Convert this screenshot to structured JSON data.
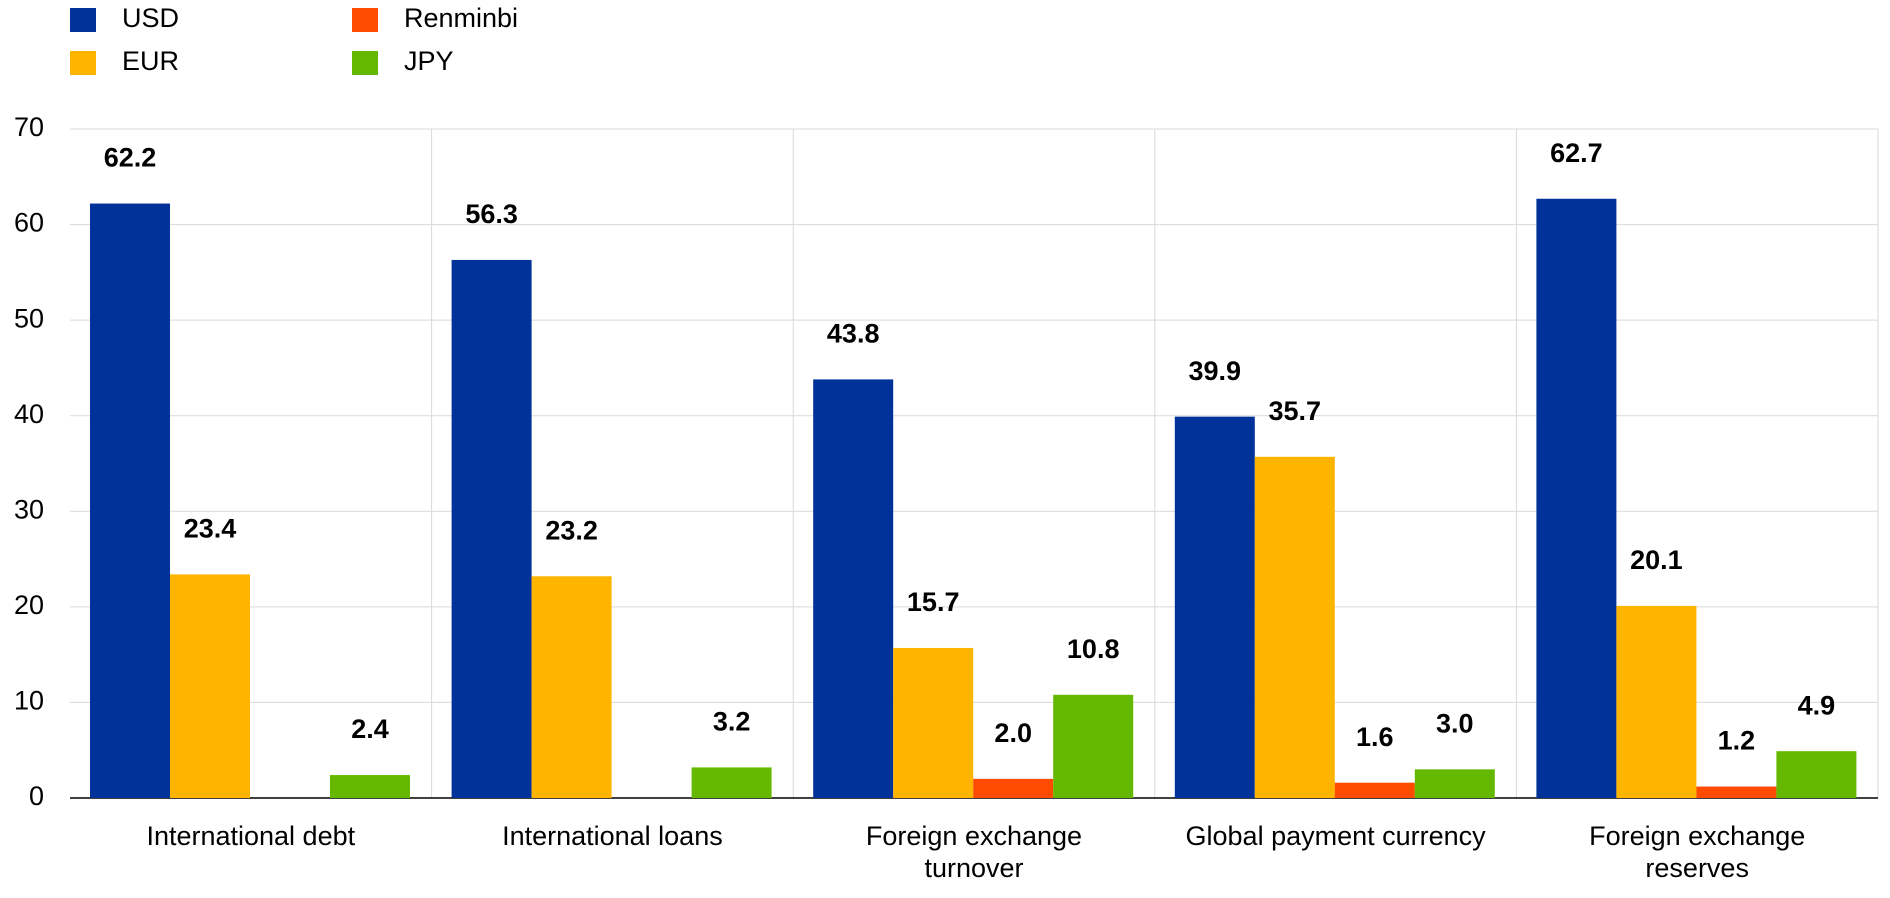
{
  "chart_data": {
    "type": "bar",
    "categories": [
      "International debt",
      "International loans",
      "Foreign exchange turnover",
      "Global payment currency",
      "Foreign exchange reserves"
    ],
    "series": [
      {
        "name": "USD",
        "color": "#003299",
        "values": [
          62.2,
          56.3,
          43.8,
          39.9,
          62.7
        ],
        "value_labels": [
          "62.2",
          "56.3",
          "43.8",
          "39.9",
          "62.7"
        ]
      },
      {
        "name": "EUR",
        "color": "#ffb400",
        "values": [
          23.4,
          23.2,
          15.7,
          35.7,
          20.1
        ],
        "value_labels": [
          "23.4",
          "23.2",
          "15.7",
          "35.7",
          "20.1"
        ]
      },
      {
        "name": "Renminbi",
        "color": "#ff4b00",
        "values": [
          null,
          null,
          2.0,
          1.6,
          1.2
        ],
        "value_labels": [
          null,
          null,
          "2.0",
          "1.6",
          "1.2"
        ]
      },
      {
        "name": "JPY",
        "color": "#65b800",
        "values": [
          2.4,
          3.2,
          10.8,
          3.0,
          4.9
        ],
        "value_labels": [
          "2.4",
          "3.2",
          "10.8",
          "3.0",
          "4.9"
        ]
      }
    ],
    "ylim": [
      0,
      70
    ],
    "yticks": [
      0,
      10,
      20,
      30,
      40,
      50,
      60,
      70
    ],
    "grid": true
  }
}
